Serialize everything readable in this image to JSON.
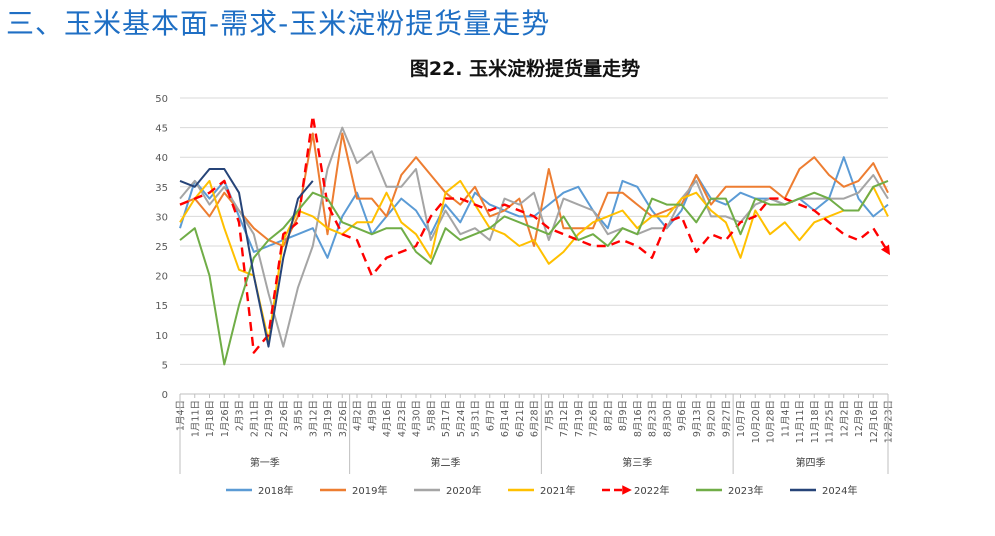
{
  "slide_title": "三、玉米基本面-需求-玉米淀粉提货量走势",
  "chart_data": {
    "type": "line",
    "title": "图22. 玉米淀粉提货量走势",
    "xlabel": "",
    "ylabel": "",
    "ylim": [
      0,
      50
    ],
    "yticks": [
      0,
      5,
      10,
      15,
      20,
      25,
      30,
      35,
      40,
      45,
      50
    ],
    "grid": true,
    "legend_position": "bottom",
    "x_labels": [
      "1月4日",
      "1月11日",
      "1月18日",
      "1月26日",
      "2月3日",
      "2月11日",
      "2月19日",
      "2月26日",
      "3月5日",
      "3月12日",
      "3月19日",
      "3月26日",
      "4月2日",
      "4月9日",
      "4月16日",
      "4月23日",
      "4月30日",
      "5月8日",
      "5月17日",
      "5月24日",
      "5月31日",
      "6月7日",
      "6月14日",
      "6月21日",
      "6月28日",
      "7月5日",
      "7月12日",
      "7月19日",
      "7月26日",
      "8月2日",
      "8月9日",
      "8月16日",
      "8月23日",
      "8月30日",
      "9月6日",
      "9月13日",
      "9月20日",
      "9月27日",
      "10月7日",
      "10月20日",
      "10月28日",
      "11月4日",
      "11月11日",
      "11月18日",
      "11月25日",
      "12月2日",
      "12月9日",
      "12月16日",
      "12月23日"
    ],
    "quarters": [
      {
        "label": "第一季",
        "start": 0,
        "end": 11
      },
      {
        "label": "第二季",
        "start": 12,
        "end": 24
      },
      {
        "label": "第三季",
        "start": 25,
        "end": 37
      },
      {
        "label": "第四季",
        "start": 38,
        "end": 48
      }
    ],
    "series": [
      {
        "name": "2018年",
        "color": "#5b9bd5",
        "style": "solid",
        "values": [
          28,
          36,
          33,
          36,
          30,
          24,
          25,
          26,
          27,
          28,
          23,
          30,
          34,
          27,
          30,
          33,
          31,
          27,
          32,
          29,
          34,
          32,
          31,
          30,
          30,
          32,
          34,
          35,
          31,
          28,
          36,
          35,
          31,
          28,
          31,
          37,
          33,
          32,
          34,
          33,
          33,
          32,
          33,
          31,
          33,
          40,
          33,
          30,
          32
        ]
      },
      {
        "name": "2019年",
        "color": "#ed7d31",
        "style": "solid",
        "values": [
          32,
          33,
          30,
          34,
          31,
          28,
          26,
          25,
          30,
          44,
          27,
          44,
          33,
          33,
          30,
          37,
          40,
          37,
          34,
          32,
          35,
          30,
          31,
          33,
          25,
          38,
          28,
          28,
          28,
          34,
          34,
          32,
          30,
          31,
          32,
          37,
          32,
          35,
          35,
          35,
          35,
          33,
          38,
          40,
          37,
          35,
          36,
          39,
          34
        ]
      },
      {
        "name": "2020年",
        "color": "#a5a5a5",
        "style": "solid",
        "values": [
          33,
          36,
          32,
          35,
          31,
          27,
          17,
          8,
          18,
          25,
          38,
          45,
          39,
          41,
          35,
          35,
          38,
          26,
          31,
          27,
          28,
          26,
          33,
          32,
          34,
          26,
          33,
          32,
          31,
          27,
          28,
          27,
          28,
          28,
          33,
          36,
          30,
          30,
          29,
          32,
          33,
          32,
          33,
          33,
          33,
          33,
          34,
          37,
          33
        ]
      },
      {
        "name": "2021年",
        "color": "#ffc000",
        "style": "solid",
        "values": [
          29,
          33,
          36,
          28,
          21,
          20,
          9,
          26,
          31,
          30,
          28,
          27,
          29,
          29,
          34,
          29,
          27,
          23,
          34,
          36,
          32,
          28,
          27,
          25,
          26,
          22,
          24,
          27,
          29,
          30,
          31,
          28,
          30,
          30,
          33,
          34,
          31,
          29,
          23,
          31,
          27,
          29,
          26,
          29,
          30,
          31,
          31,
          35,
          30
        ]
      },
      {
        "name": "2022年",
        "color": "#ff0000",
        "style": "dashed-arrow",
        "values": [
          32,
          33,
          34,
          36,
          29,
          7,
          10,
          27,
          29,
          47,
          32,
          27,
          26,
          20,
          23,
          24,
          25,
          30,
          33,
          33,
          32,
          31,
          32,
          31,
          30,
          28,
          27,
          26,
          25,
          25,
          26,
          25,
          23,
          29,
          30,
          24,
          27,
          26,
          29,
          30,
          33,
          33,
          32,
          31,
          29,
          27,
          26,
          28,
          24
        ]
      },
      {
        "name": "2023年",
        "color": "#70ad47",
        "style": "solid",
        "values": [
          26,
          28,
          20,
          5,
          15,
          23,
          26,
          28,
          31,
          34,
          33,
          29,
          28,
          27,
          28,
          28,
          24,
          22,
          28,
          26,
          27,
          28,
          30,
          29,
          28,
          27,
          30,
          26,
          27,
          25,
          28,
          27,
          33,
          32,
          32,
          29,
          33,
          33,
          27,
          33,
          32,
          32,
          33,
          34,
          33,
          31,
          31,
          35,
          36
        ]
      },
      {
        "name": "2024年",
        "color": "#264478",
        "style": "solid",
        "values": [
          36,
          35,
          38,
          38,
          34,
          20,
          8,
          23,
          33,
          36
        ]
      }
    ]
  }
}
